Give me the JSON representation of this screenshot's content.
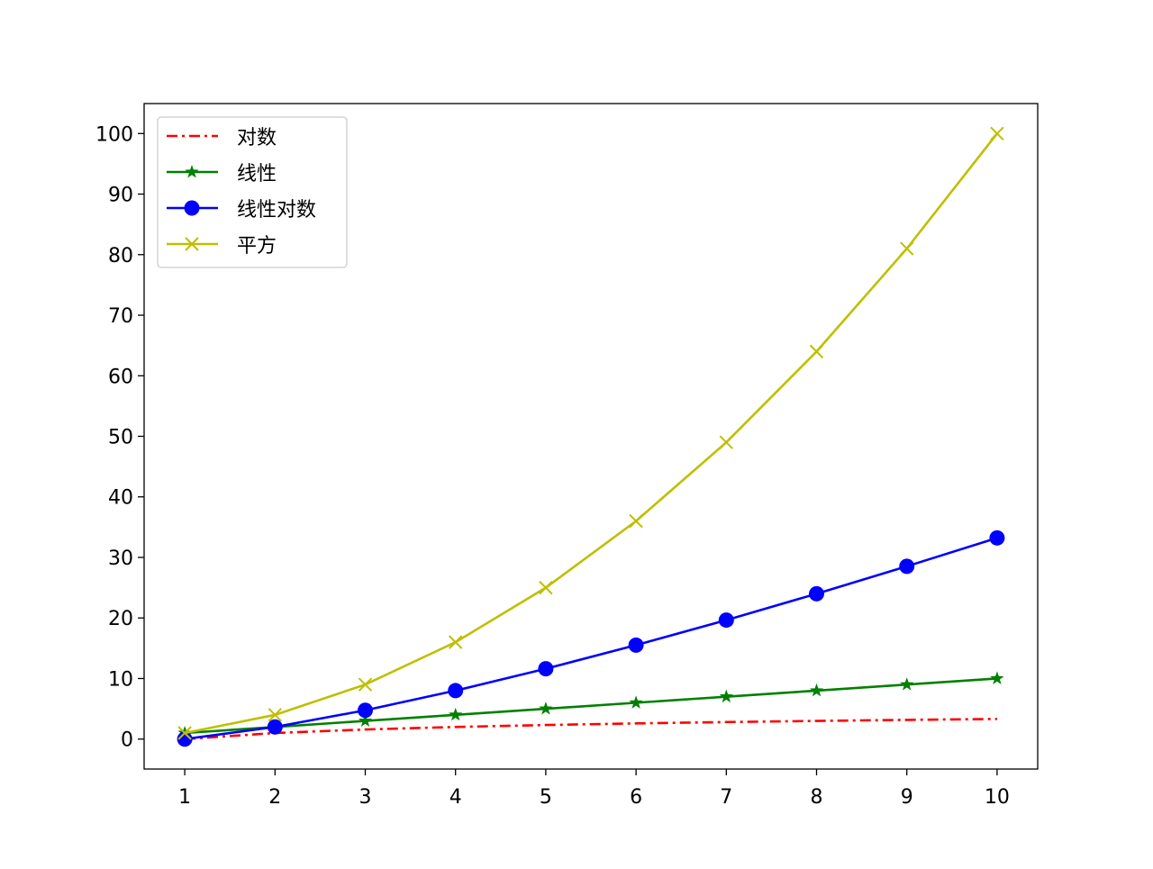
{
  "chart_data": {
    "type": "line",
    "title": "",
    "xlabel": "",
    "ylabel": "",
    "x": [
      1,
      2,
      3,
      4,
      5,
      6,
      7,
      8,
      9,
      10
    ],
    "xlim": [
      0.55,
      10.45
    ],
    "ylim": [
      -4.95,
      104.95
    ],
    "xticks": [
      1,
      2,
      3,
      4,
      5,
      6,
      7,
      8,
      9,
      10
    ],
    "yticks": [
      0,
      10,
      20,
      30,
      40,
      50,
      60,
      70,
      80,
      90,
      100
    ],
    "grid": false,
    "legend_position": "top-left",
    "series": [
      {
        "name": "对数",
        "color": "#ff0000",
        "linestyle": "dash-dot",
        "marker": "none",
        "values": [
          0,
          1,
          1.585,
          2,
          2.322,
          2.585,
          2.807,
          3,
          3.17,
          3.322
        ]
      },
      {
        "name": "线性",
        "color": "#008000",
        "linestyle": "solid",
        "marker": "star",
        "values": [
          1,
          2,
          3,
          4,
          5,
          6,
          7,
          8,
          9,
          10
        ]
      },
      {
        "name": "线性对数",
        "color": "#0000ff",
        "linestyle": "solid",
        "marker": "circle",
        "values": [
          0,
          2,
          4.755,
          8,
          11.61,
          15.51,
          19.65,
          24,
          28.53,
          33.22
        ]
      },
      {
        "name": "平方",
        "color": "#bfbf00",
        "linestyle": "solid",
        "marker": "x",
        "values": [
          1,
          4,
          9,
          16,
          25,
          36,
          49,
          64,
          81,
          100
        ]
      }
    ]
  }
}
